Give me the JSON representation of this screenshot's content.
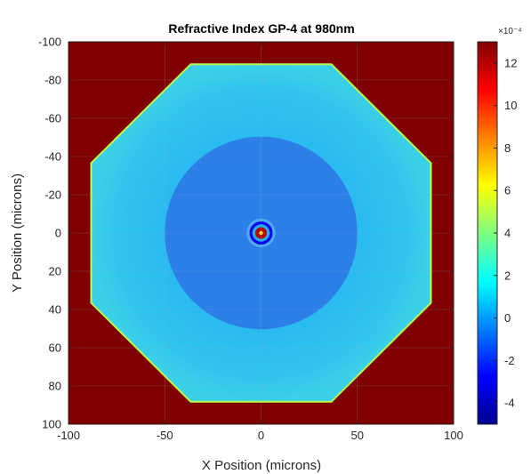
{
  "chart_data": {
    "type": "heatmap",
    "title": "Refractive Index GP-4 at 980nm",
    "xlabel": "X Position (microns)",
    "ylabel": "Y Position (microns)",
    "xlim": [
      -100,
      100
    ],
    "ylim": [
      -100,
      100
    ],
    "y_reversed": true,
    "x_ticks": [
      -100,
      -50,
      0,
      50,
      100
    ],
    "y_ticks": [
      -100,
      -80,
      -60,
      -40,
      -20,
      0,
      20,
      40,
      60,
      80,
      100
    ],
    "x_tick_labels": [
      "-100",
      "-50",
      "0",
      "50",
      "100"
    ],
    "y_tick_labels": [
      "-100",
      "-80",
      "-60",
      "-40",
      "-20",
      "0",
      "20",
      "40",
      "60",
      "80",
      "100"
    ],
    "colorbar": {
      "colormap": "jet",
      "range": [
        -5,
        13
      ],
      "ticks": [
        -4,
        -2,
        0,
        2,
        4,
        6,
        8,
        10,
        12
      ],
      "tick_labels": [
        "-4",
        "-2",
        "0",
        "2",
        "4",
        "6",
        "8",
        "10",
        "12"
      ],
      "exponent_label": "×10⁻⁴",
      "exponent": -4
    },
    "regions": [
      {
        "name": "background",
        "value": 13
      },
      {
        "name": "cladding",
        "shape": "octagon",
        "radius": 95,
        "value": 1.5
      },
      {
        "name": "cladding-edge",
        "shape": "octagon-ring",
        "radius": 96,
        "value": 5
      },
      {
        "name": "inner-disk",
        "shape": "disk",
        "radius": 50,
        "value": 0.3
      },
      {
        "name": "core-ring-outer",
        "shape": "ring",
        "radius": 7.5,
        "value": 0.2
      },
      {
        "name": "core-ring-dark",
        "shape": "ring",
        "radius": 6,
        "value": -3
      },
      {
        "name": "core-ring-light",
        "shape": "ring",
        "radius": 4.5,
        "value": 2
      },
      {
        "name": "core",
        "shape": "disk",
        "radius": 3,
        "value": 12
      }
    ]
  }
}
